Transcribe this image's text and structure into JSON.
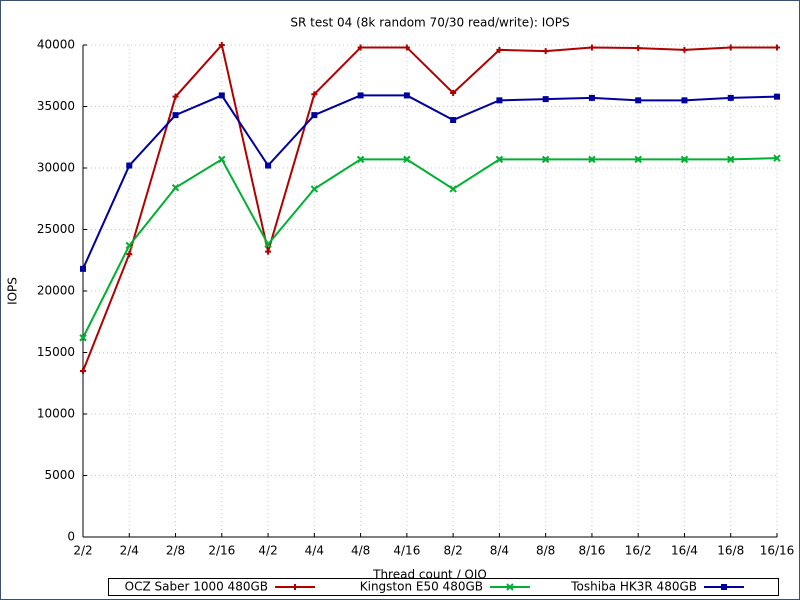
{
  "chart_data": {
    "type": "line",
    "title": "SR test 04 (8k random 70/30 read/write): IOPS",
    "x_label": "Thread count / OIO",
    "y_label": "IOPS",
    "categories": [
      "2/2",
      "2/4",
      "2/8",
      "2/16",
      "4/2",
      "4/4",
      "4/8",
      "4/16",
      "8/2",
      "8/4",
      "8/8",
      "8/16",
      "16/2",
      "16/4",
      "16/8",
      "16/16"
    ],
    "series": [
      {
        "name": "OCZ Saber 1000 480GB",
        "color": "#b00000",
        "marker": "plus",
        "values": [
          13500,
          23000,
          35800,
          40000,
          23200,
          36000,
          39800,
          39800,
          36100,
          39600,
          39500,
          39800,
          39750,
          39600,
          39800,
          39800
        ]
      },
      {
        "name": "Kingston E50 480GB",
        "color": "#00b030",
        "marker": "x",
        "values": [
          16200,
          23700,
          28400,
          30700,
          23800,
          28300,
          30700,
          30700,
          28300,
          30700,
          30700,
          30700,
          30700,
          30700,
          30700,
          30800
        ]
      },
      {
        "name": "Toshiba HK3R 480GB",
        "color": "#0000a0",
        "marker": "square",
        "values": [
          21800,
          30200,
          34300,
          35900,
          30200,
          34300,
          35900,
          35900,
          33900,
          35500,
          35600,
          35700,
          35500,
          35500,
          35700,
          35800
        ]
      }
    ],
    "ylim": [
      0,
      40000
    ],
    "yticks": [
      0,
      5000,
      10000,
      15000,
      20000,
      25000,
      30000,
      35000,
      40000
    ],
    "grid": true,
    "legend": "bottom"
  }
}
